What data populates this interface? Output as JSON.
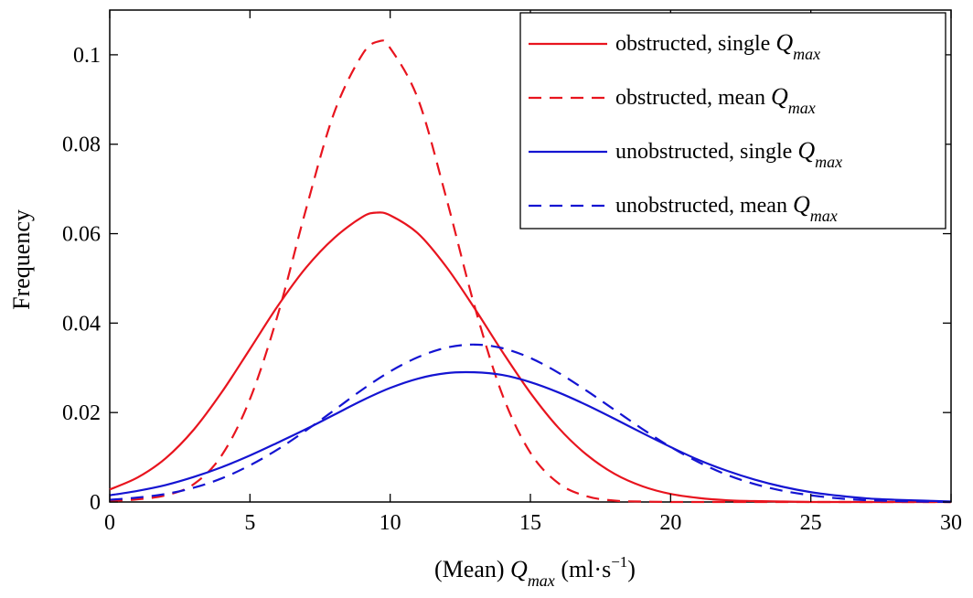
{
  "chart_data": {
    "type": "line",
    "title": "",
    "xlabel": {
      "prefix": "(Mean) ",
      "var": "Q",
      "sub": "max",
      "units_open": " (ml·s",
      "units_sup": "−1",
      "units_close": ")"
    },
    "ylabel": "Frequency",
    "xlim": [
      0,
      30
    ],
    "ylim": [
      0,
      0.11
    ],
    "x_ticks": [
      0,
      5,
      10,
      15,
      20,
      25,
      30
    ],
    "x_tick_labels": [
      "0",
      "5",
      "10",
      "15",
      "20",
      "25",
      "30"
    ],
    "y_ticks": [
      0,
      0.02,
      0.04,
      0.06,
      0.08,
      0.1
    ],
    "y_tick_labels": [
      "0",
      "0.02",
      "0.04",
      "0.06",
      "0.08",
      "0.1"
    ],
    "grid": false,
    "legend_position": "top-right",
    "series": [
      {
        "legend_prefix": "obstructed, single ",
        "legend_var": "Q",
        "legend_sub": "max",
        "color": "#e8141e",
        "dash": "solid",
        "x": [
          0,
          1,
          2,
          3,
          4,
          5,
          6,
          7,
          8,
          9,
          9.5,
          10,
          11,
          12,
          13,
          14,
          15,
          16,
          17,
          18,
          19,
          20,
          21,
          22,
          23,
          24,
          25,
          26,
          27,
          28,
          29,
          30
        ],
        "y": [
          0.0028,
          0.0055,
          0.0098,
          0.0162,
          0.0246,
          0.0342,
          0.0439,
          0.0524,
          0.059,
          0.0637,
          0.0647,
          0.0641,
          0.06,
          0.0526,
          0.0434,
          0.0336,
          0.0244,
          0.0166,
          0.0106,
          0.0063,
          0.0035,
          0.0018,
          0.0009,
          0.0004,
          0.0002,
          0.0001,
          0,
          0,
          0,
          0,
          0,
          0
        ]
      },
      {
        "legend_prefix": "obstructed, mean ",
        "legend_var": "Q",
        "legend_sub": "max",
        "color": "#e8141e",
        "dash": "dashed",
        "x": [
          0,
          1,
          2,
          3,
          4,
          5,
          6,
          7,
          8,
          9,
          9.6,
          10,
          11,
          12,
          13,
          14,
          15,
          16,
          17,
          18,
          19,
          20,
          21,
          22,
          23,
          24,
          25,
          26,
          27,
          28,
          29,
          30
        ],
        "y": [
          0.0002,
          0.0006,
          0.0015,
          0.004,
          0.0105,
          0.023,
          0.042,
          0.0655,
          0.087,
          0.1,
          0.103,
          0.1015,
          0.09,
          0.068,
          0.044,
          0.024,
          0.011,
          0.0042,
          0.0013,
          0.0003,
          0.0001,
          0,
          0,
          0,
          0,
          0,
          0,
          0,
          0,
          0,
          0,
          0
        ]
      },
      {
        "legend_prefix": "unobstructed, single ",
        "legend_var": "Q",
        "legend_sub": "max",
        "color": "#1414d2",
        "dash": "solid",
        "x": [
          0,
          1,
          2,
          3,
          4,
          5,
          6,
          7,
          8,
          9,
          10,
          11,
          12,
          13,
          14,
          15,
          16,
          17,
          18,
          19,
          20,
          21,
          22,
          23,
          24,
          25,
          26,
          27,
          28,
          29,
          30
        ],
        "y": [
          0.0015,
          0.0025,
          0.0038,
          0.0056,
          0.0078,
          0.0104,
          0.0133,
          0.0163,
          0.0195,
          0.0227,
          0.0255,
          0.0276,
          0.0288,
          0.029,
          0.0284,
          0.0268,
          0.0245,
          0.0217,
          0.0186,
          0.0154,
          0.0123,
          0.0094,
          0.007,
          0.005,
          0.0034,
          0.0022,
          0.0014,
          0.0008,
          0.0005,
          0.0003,
          0.0001
        ]
      },
      {
        "legend_prefix": "unobstructed, mean ",
        "legend_var": "Q",
        "legend_sub": "max",
        "color": "#1414d2",
        "dash": "dashed",
        "x": [
          0,
          1,
          2,
          3,
          4,
          5,
          6,
          7,
          8,
          9,
          10,
          11,
          12,
          13,
          14,
          15,
          16,
          17,
          18,
          19,
          20,
          21,
          22,
          23,
          24,
          25,
          26,
          27,
          28,
          29,
          30
        ],
        "y": [
          0.0005,
          0.001,
          0.0018,
          0.0032,
          0.0053,
          0.0082,
          0.0118,
          0.016,
          0.0205,
          0.0251,
          0.0292,
          0.0324,
          0.0345,
          0.0352,
          0.0344,
          0.0322,
          0.0289,
          0.0249,
          0.0206,
          0.0163,
          0.0123,
          0.0089,
          0.0061,
          0.004,
          0.0025,
          0.0015,
          0.0008,
          0.0004,
          0.0002,
          0.0001,
          0
        ]
      }
    ]
  }
}
